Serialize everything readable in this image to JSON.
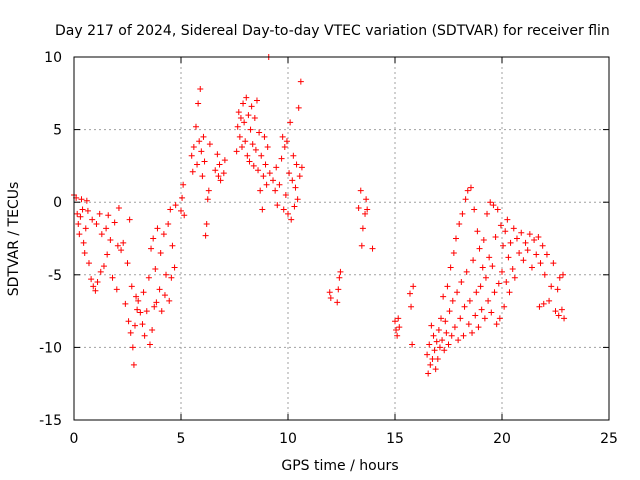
{
  "chart_data": {
    "type": "scatter",
    "title": "Day 217 of 2024, Sidereal Day-to-day VTEC variation (SDTVAR) for receiver flin",
    "xlabel": "GPS time / hours",
    "ylabel": "SDTVAR / TECUs",
    "xlim": [
      0,
      25
    ],
    "ylim": [
      -15,
      10
    ],
    "xticks": [
      0,
      5,
      10,
      15,
      20,
      25
    ],
    "yticks": [
      -15,
      -10,
      -5,
      0,
      5,
      10
    ],
    "x_tick_labels": [
      "0",
      "5",
      "10",
      "15",
      "20",
      "25"
    ],
    "y_tick_labels": [
      "-15",
      "-10",
      "-5",
      "0",
      "5",
      "10"
    ],
    "grid": true,
    "marker": "+",
    "color": "#ff0000",
    "series": [
      {
        "name": "SDTVAR",
        "points": [
          [
            0.0,
            0.5
          ],
          [
            0.1,
            0.3
          ],
          [
            0.15,
            -0.8
          ],
          [
            0.2,
            -1.5
          ],
          [
            0.25,
            -2.2
          ],
          [
            0.3,
            -1.0
          ],
          [
            0.35,
            0.2
          ],
          [
            0.4,
            -0.5
          ],
          [
            0.45,
            -2.8
          ],
          [
            0.5,
            -3.5
          ],
          [
            0.55,
            -1.8
          ],
          [
            0.6,
            0.1
          ],
          [
            0.65,
            -0.6
          ],
          [
            0.7,
            -4.2
          ],
          [
            0.8,
            -5.3
          ],
          [
            0.85,
            -1.2
          ],
          [
            0.9,
            -5.8
          ],
          [
            1.0,
            -6.1
          ],
          [
            1.05,
            -1.5
          ],
          [
            1.1,
            -5.5
          ],
          [
            1.2,
            -0.8
          ],
          [
            1.25,
            -4.8
          ],
          [
            1.3,
            -2.2
          ],
          [
            1.4,
            -4.4
          ],
          [
            1.5,
            -1.8
          ],
          [
            1.55,
            -3.6
          ],
          [
            1.6,
            -0.9
          ],
          [
            1.7,
            -2.6
          ],
          [
            1.8,
            -5.2
          ],
          [
            1.9,
            -1.4
          ],
          [
            2.0,
            -6.0
          ],
          [
            2.05,
            -3.0
          ],
          [
            2.1,
            -0.4
          ],
          [
            2.2,
            -3.3
          ],
          [
            2.3,
            -2.8
          ],
          [
            2.4,
            -7.0
          ],
          [
            2.5,
            -4.2
          ],
          [
            2.55,
            -8.2
          ],
          [
            2.6,
            -1.2
          ],
          [
            2.65,
            -9.0
          ],
          [
            2.7,
            -5.8
          ],
          [
            2.75,
            -10.0
          ],
          [
            2.8,
            -11.2
          ],
          [
            2.85,
            -8.5
          ],
          [
            2.9,
            -6.5
          ],
          [
            2.95,
            -7.4
          ],
          [
            3.0,
            -6.8
          ],
          [
            3.1,
            -7.6
          ],
          [
            3.2,
            -8.4
          ],
          [
            3.25,
            -6.2
          ],
          [
            3.3,
            -9.2
          ],
          [
            3.4,
            -7.5
          ],
          [
            3.5,
            -5.2
          ],
          [
            3.55,
            -9.8
          ],
          [
            3.6,
            -3.2
          ],
          [
            3.65,
            -8.8
          ],
          [
            3.7,
            -2.5
          ],
          [
            3.75,
            -7.2
          ],
          [
            3.8,
            -4.6
          ],
          [
            3.85,
            -6.9
          ],
          [
            3.9,
            -1.8
          ],
          [
            4.0,
            -6.0
          ],
          [
            4.05,
            -3.5
          ],
          [
            4.1,
            -7.5
          ],
          [
            4.2,
            -2.2
          ],
          [
            4.25,
            -6.4
          ],
          [
            4.3,
            -5.0
          ],
          [
            4.4,
            -1.5
          ],
          [
            4.45,
            -6.8
          ],
          [
            4.5,
            -0.5
          ],
          [
            4.55,
            -5.2
          ],
          [
            4.6,
            -3.0
          ],
          [
            4.7,
            -4.5
          ],
          [
            4.75,
            -0.2
          ],
          [
            5.0,
            -0.6
          ],
          [
            5.05,
            0.3
          ],
          [
            5.1,
            1.2
          ],
          [
            5.15,
            -0.9
          ],
          [
            5.5,
            3.2
          ],
          [
            5.55,
            2.1
          ],
          [
            5.6,
            3.8
          ],
          [
            5.7,
            5.2
          ],
          [
            5.75,
            2.6
          ],
          [
            5.8,
            6.8
          ],
          [
            5.85,
            4.2
          ],
          [
            5.9,
            7.8
          ],
          [
            5.95,
            3.5
          ],
          [
            6.0,
            1.8
          ],
          [
            6.05,
            4.5
          ],
          [
            6.1,
            2.8
          ],
          [
            6.15,
            -2.3
          ],
          [
            6.2,
            -1.5
          ],
          [
            6.25,
            0.2
          ],
          [
            6.3,
            0.8
          ],
          [
            6.35,
            4.0
          ],
          [
            6.6,
            2.2
          ],
          [
            6.7,
            3.3
          ],
          [
            6.75,
            1.8
          ],
          [
            6.8,
            2.6
          ],
          [
            6.85,
            1.5
          ],
          [
            7.0,
            2.0
          ],
          [
            7.05,
            2.9
          ],
          [
            7.6,
            3.5
          ],
          [
            7.65,
            5.2
          ],
          [
            7.7,
            6.2
          ],
          [
            7.75,
            4.5
          ],
          [
            7.8,
            5.8
          ],
          [
            7.85,
            3.8
          ],
          [
            7.9,
            6.8
          ],
          [
            7.95,
            5.5
          ],
          [
            8.0,
            4.2
          ],
          [
            8.05,
            7.2
          ],
          [
            8.1,
            3.2
          ],
          [
            8.15,
            6.0
          ],
          [
            8.2,
            2.8
          ],
          [
            8.25,
            5.0
          ],
          [
            8.3,
            6.6
          ],
          [
            8.35,
            4.0
          ],
          [
            8.4,
            2.5
          ],
          [
            8.45,
            5.8
          ],
          [
            8.5,
            3.6
          ],
          [
            8.55,
            7.0
          ],
          [
            8.6,
            2.2
          ],
          [
            8.65,
            4.8
          ],
          [
            8.7,
            0.8
          ],
          [
            8.75,
            3.2
          ],
          [
            8.8,
            -0.5
          ],
          [
            8.85,
            1.8
          ],
          [
            8.9,
            4.5
          ],
          [
            8.95,
            2.6
          ],
          [
            9.0,
            1.2
          ],
          [
            9.05,
            3.8
          ],
          [
            9.1,
            10.0
          ],
          [
            9.15,
            2.0
          ],
          [
            9.3,
            1.5
          ],
          [
            9.4,
            0.8
          ],
          [
            9.45,
            2.4
          ],
          [
            9.5,
            -0.2
          ],
          [
            9.6,
            1.2
          ],
          [
            9.7,
            3.0
          ],
          [
            9.75,
            4.5
          ],
          [
            9.8,
            -0.5
          ],
          [
            9.85,
            3.8
          ],
          [
            9.9,
            0.5
          ],
          [
            9.95,
            4.2
          ],
          [
            10.0,
            -0.8
          ],
          [
            10.05,
            2.0
          ],
          [
            10.1,
            5.5
          ],
          [
            10.15,
            -1.2
          ],
          [
            10.2,
            1.5
          ],
          [
            10.25,
            3.2
          ],
          [
            10.3,
            -0.3
          ],
          [
            10.35,
            1.0
          ],
          [
            10.4,
            2.6
          ],
          [
            10.45,
            0.2
          ],
          [
            10.5,
            6.5
          ],
          [
            10.55,
            1.8
          ],
          [
            10.6,
            8.3
          ],
          [
            10.65,
            2.4
          ],
          [
            11.95,
            -6.2
          ],
          [
            12.0,
            -6.6
          ],
          [
            12.3,
            -6.9
          ],
          [
            12.35,
            -6.0
          ],
          [
            12.4,
            -5.2
          ],
          [
            12.45,
            -4.8
          ],
          [
            13.3,
            -0.4
          ],
          [
            13.4,
            0.8
          ],
          [
            13.45,
            -3.0
          ],
          [
            13.5,
            -1.8
          ],
          [
            13.6,
            -0.8
          ],
          [
            13.65,
            0.2
          ],
          [
            13.7,
            -0.5
          ],
          [
            13.95,
            -3.2
          ],
          [
            15.0,
            -8.2
          ],
          [
            15.05,
            -8.8
          ],
          [
            15.1,
            -9.2
          ],
          [
            15.15,
            -8.0
          ],
          [
            15.2,
            -8.6
          ],
          [
            15.7,
            -6.3
          ],
          [
            15.75,
            -7.2
          ],
          [
            15.8,
            -9.8
          ],
          [
            15.85,
            -5.8
          ],
          [
            16.5,
            -10.5
          ],
          [
            16.55,
            -11.8
          ],
          [
            16.6,
            -9.8
          ],
          [
            16.65,
            -11.2
          ],
          [
            16.7,
            -8.5
          ],
          [
            16.75,
            -10.8
          ],
          [
            16.8,
            -9.2
          ],
          [
            16.85,
            -10.2
          ],
          [
            16.9,
            -11.5
          ],
          [
            16.95,
            -9.6
          ],
          [
            17.0,
            -10.8
          ],
          [
            17.05,
            -8.8
          ],
          [
            17.1,
            -10.0
          ],
          [
            17.15,
            -8.0
          ],
          [
            17.2,
            -9.5
          ],
          [
            17.25,
            -6.5
          ],
          [
            17.3,
            -10.2
          ],
          [
            17.35,
            -8.2
          ],
          [
            17.4,
            -9.0
          ],
          [
            17.45,
            -5.8
          ],
          [
            17.5,
            -9.8
          ],
          [
            17.55,
            -7.5
          ],
          [
            17.6,
            -4.5
          ],
          [
            17.65,
            -9.2
          ],
          [
            17.7,
            -6.8
          ],
          [
            17.75,
            -3.5
          ],
          [
            17.8,
            -8.6
          ],
          [
            17.85,
            -2.5
          ],
          [
            17.9,
            -6.2
          ],
          [
            17.95,
            -9.5
          ],
          [
            18.0,
            -1.5
          ],
          [
            18.05,
            -8.0
          ],
          [
            18.1,
            -5.5
          ],
          [
            18.15,
            -0.8
          ],
          [
            18.2,
            -9.2
          ],
          [
            18.25,
            -7.2
          ],
          [
            18.3,
            0.2
          ],
          [
            18.35,
            -4.8
          ],
          [
            18.4,
            0.8
          ],
          [
            18.45,
            -8.4
          ],
          [
            18.5,
            -6.8
          ],
          [
            18.55,
            1.0
          ],
          [
            18.6,
            -9.0
          ],
          [
            18.65,
            -4.0
          ],
          [
            18.7,
            -0.5
          ],
          [
            18.75,
            -7.8
          ],
          [
            18.8,
            -6.2
          ],
          [
            18.85,
            -2.0
          ],
          [
            18.9,
            -8.6
          ],
          [
            18.95,
            -3.2
          ],
          [
            19.0,
            -5.8
          ],
          [
            19.05,
            -7.4
          ],
          [
            19.1,
            -4.5
          ],
          [
            19.15,
            -2.6
          ],
          [
            19.2,
            -8.0
          ],
          [
            19.25,
            -5.2
          ],
          [
            19.3,
            -0.8
          ],
          [
            19.35,
            -6.8
          ],
          [
            19.4,
            -3.8
          ],
          [
            19.45,
            0.0
          ],
          [
            19.5,
            -7.6
          ],
          [
            19.55,
            -4.4
          ],
          [
            19.6,
            -0.2
          ],
          [
            19.65,
            -6.2
          ],
          [
            19.7,
            -2.4
          ],
          [
            19.75,
            -8.4
          ],
          [
            19.8,
            -0.5
          ],
          [
            19.85,
            -5.6
          ],
          [
            19.9,
            -8.0
          ],
          [
            19.95,
            -1.6
          ],
          [
            20.0,
            -4.8
          ],
          [
            20.05,
            -3.0
          ],
          [
            20.1,
            -7.2
          ],
          [
            20.15,
            -2.0
          ],
          [
            20.2,
            -5.5
          ],
          [
            20.25,
            -1.2
          ],
          [
            20.3,
            -3.8
          ],
          [
            20.35,
            -6.2
          ],
          [
            20.4,
            -2.8
          ],
          [
            20.5,
            -4.6
          ],
          [
            20.55,
            -1.8
          ],
          [
            20.6,
            -5.2
          ],
          [
            20.7,
            -2.5
          ],
          [
            20.8,
            -3.5
          ],
          [
            20.9,
            -2.1
          ],
          [
            21.0,
            -4.0
          ],
          [
            21.1,
            -2.8
          ],
          [
            21.2,
            -3.3
          ],
          [
            21.3,
            -2.2
          ],
          [
            21.4,
            -4.5
          ],
          [
            21.5,
            -2.6
          ],
          [
            21.6,
            -3.6
          ],
          [
            21.7,
            -2.4
          ],
          [
            21.75,
            -7.2
          ],
          [
            21.8,
            -4.2
          ],
          [
            21.9,
            -3.0
          ],
          [
            21.95,
            -7.0
          ],
          [
            22.0,
            -5.0
          ],
          [
            22.1,
            -3.6
          ],
          [
            22.2,
            -6.8
          ],
          [
            22.3,
            -5.8
          ],
          [
            22.4,
            -4.2
          ],
          [
            22.5,
            -7.5
          ],
          [
            22.6,
            -6.0
          ],
          [
            22.65,
            -7.8
          ],
          [
            22.7,
            -5.2
          ],
          [
            22.8,
            -7.4
          ],
          [
            22.85,
            -5.0
          ],
          [
            22.9,
            -8.0
          ]
        ]
      }
    ]
  }
}
